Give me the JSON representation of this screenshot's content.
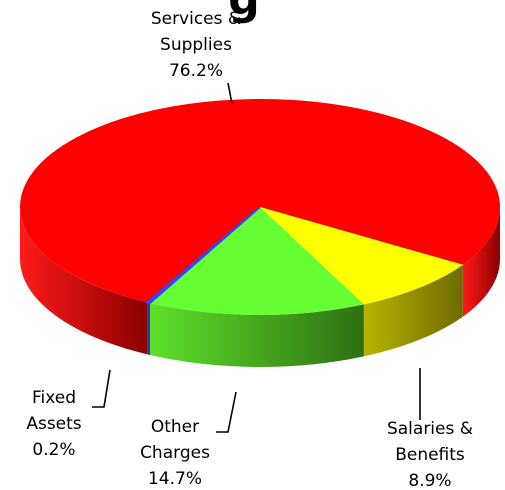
{
  "chart_data": {
    "type": "pie",
    "style": "3d-exploded-none",
    "title_fragment": "g",
    "slices": [
      {
        "name": "Services & Supplies",
        "line1": "Services &",
        "line2": "Supplies",
        "label": "76.2%",
        "value": 76.2,
        "color": "#ff0000",
        "side_color": "#cc0000"
      },
      {
        "name": "Salaries & Benefits",
        "line1": "Salaries &",
        "line2": "Benefits",
        "label": "8.9%",
        "value": 8.9,
        "color": "#ffff00",
        "side_color": "#9a9a00"
      },
      {
        "name": "Other Charges",
        "line1": "Other",
        "line2": "Charges",
        "label": "14.7%",
        "value": 14.7,
        "color": "#66ff33",
        "side_color": "#3a8a1a"
      },
      {
        "name": "Fixed Assets",
        "line1": "Fixed",
        "line2": "Assets",
        "label": "0.2%",
        "value": 0.2,
        "color": "#3344ff",
        "side_color": "#2233bb"
      }
    ]
  }
}
